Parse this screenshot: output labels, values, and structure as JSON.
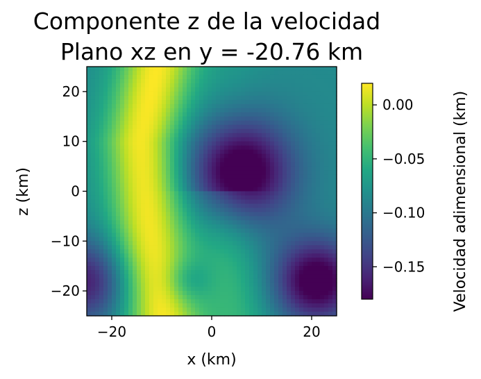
{
  "chart_data": {
    "type": "heatmap",
    "title_lines": [
      "Componente z de la velocidad",
      "Plano xz en y = -20.76 km"
    ],
    "xlabel": "x (km)",
    "ylabel": "z (km)",
    "xlim": [
      -25,
      25
    ],
    "ylim": [
      -25,
      25
    ],
    "x_ticks": [
      -20,
      0,
      20
    ],
    "y_ticks": [
      -20,
      -10,
      0,
      10,
      20
    ],
    "x_tick_labels": [
      "−20",
      "0",
      "20"
    ],
    "y_tick_labels": [
      "−20",
      "−10",
      "0",
      "10",
      "20"
    ],
    "colormap": "viridis",
    "colorbar": {
      "label": "Velocidad adimensional (km)",
      "range": [
        -0.18,
        0.02
      ],
      "ticks": [
        0.0,
        -0.05,
        -0.1,
        -0.15
      ],
      "tick_labels": [
        "0.00",
        "−0.05",
        "−0.10",
        "−0.15"
      ]
    },
    "field_features": [
      {
        "kind": "minimum",
        "x": 5.5,
        "z": 4,
        "value": -0.18
      },
      {
        "kind": "minimum",
        "x": 21,
        "z": -18,
        "value": -0.17
      },
      {
        "kind": "minimum",
        "x": -25,
        "z": -18,
        "value": -0.14
      },
      {
        "kind": "local-minimum",
        "x": -5,
        "z": -18,
        "value": -0.02
      },
      {
        "kind": "ridge",
        "path_x": [
          -11,
          -14,
          -13,
          -12,
          -10
        ],
        "path_z": [
          25,
          10,
          0,
          -12,
          -25
        ],
        "value": 0.02
      }
    ]
  }
}
